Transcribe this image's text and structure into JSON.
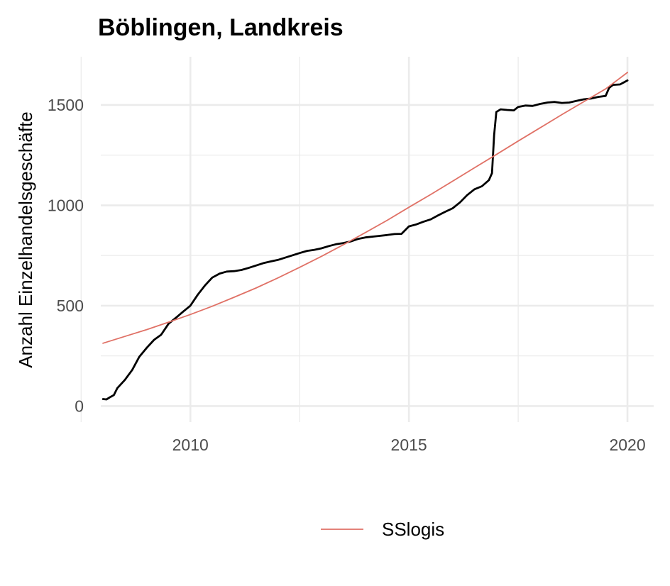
{
  "chart_data": {
    "type": "line",
    "title": "Böblingen, Landkreis",
    "xlabel": "",
    "ylabel": "Anzahl Einzelhandelsgeschäfte",
    "xlim": [
      2007.95,
      2020.6
    ],
    "ylim": [
      -80,
      1740
    ],
    "x_ticks": [
      2010,
      2015,
      2020
    ],
    "x_tick_labels": [
      "2010",
      "2015",
      "2020"
    ],
    "x_minor": [
      2007.5,
      2012.5,
      2017.5
    ],
    "y_ticks": [
      0,
      500,
      1000,
      1500
    ],
    "y_tick_labels": [
      "0",
      "500",
      "1000",
      "1500"
    ],
    "y_minor": [
      250,
      750,
      1250
    ],
    "grid": true,
    "legend": {
      "position": "bottom",
      "entries": [
        "SSlogis"
      ]
    },
    "series": [
      {
        "legend": false,
        "color": "#000000",
        "points": [
          [
            2008.0,
            35
          ],
          [
            2008.08,
            33
          ],
          [
            2008.17,
            45
          ],
          [
            2008.25,
            55
          ],
          [
            2008.33,
            90
          ],
          [
            2008.5,
            130
          ],
          [
            2008.67,
            180
          ],
          [
            2008.83,
            245
          ],
          [
            2009.0,
            290
          ],
          [
            2009.17,
            330
          ],
          [
            2009.33,
            355
          ],
          [
            2009.5,
            410
          ],
          [
            2009.67,
            440
          ],
          [
            2009.83,
            470
          ],
          [
            2010.0,
            500
          ],
          [
            2010.17,
            555
          ],
          [
            2010.33,
            600
          ],
          [
            2010.5,
            640
          ],
          [
            2010.67,
            660
          ],
          [
            2010.83,
            670
          ],
          [
            2011.0,
            672
          ],
          [
            2011.17,
            678
          ],
          [
            2011.33,
            688
          ],
          [
            2011.5,
            700
          ],
          [
            2011.67,
            712
          ],
          [
            2011.83,
            720
          ],
          [
            2012.0,
            728
          ],
          [
            2012.25,
            745
          ],
          [
            2012.5,
            762
          ],
          [
            2012.67,
            773
          ],
          [
            2012.83,
            778
          ],
          [
            2013.0,
            786
          ],
          [
            2013.17,
            797
          ],
          [
            2013.33,
            806
          ],
          [
            2013.5,
            812
          ],
          [
            2013.67,
            820
          ],
          [
            2013.83,
            832
          ],
          [
            2014.0,
            840
          ],
          [
            2014.25,
            846
          ],
          [
            2014.5,
            852
          ],
          [
            2014.67,
            857
          ],
          [
            2014.83,
            858
          ],
          [
            2015.0,
            895
          ],
          [
            2015.17,
            905
          ],
          [
            2015.33,
            918
          ],
          [
            2015.5,
            930
          ],
          [
            2015.67,
            950
          ],
          [
            2015.83,
            968
          ],
          [
            2016.0,
            985
          ],
          [
            2016.17,
            1015
          ],
          [
            2016.33,
            1050
          ],
          [
            2016.5,
            1080
          ],
          [
            2016.67,
            1095
          ],
          [
            2016.83,
            1125
          ],
          [
            2016.9,
            1160
          ],
          [
            2016.95,
            1350
          ],
          [
            2017.0,
            1465
          ],
          [
            2017.1,
            1478
          ],
          [
            2017.25,
            1475
          ],
          [
            2017.4,
            1473
          ],
          [
            2017.5,
            1490
          ],
          [
            2017.67,
            1497
          ],
          [
            2017.83,
            1495
          ],
          [
            2018.0,
            1505
          ],
          [
            2018.17,
            1512
          ],
          [
            2018.33,
            1515
          ],
          [
            2018.5,
            1510
          ],
          [
            2018.67,
            1512
          ],
          [
            2018.83,
            1520
          ],
          [
            2019.0,
            1528
          ],
          [
            2019.17,
            1532
          ],
          [
            2019.33,
            1540
          ],
          [
            2019.5,
            1545
          ],
          [
            2019.58,
            1585
          ],
          [
            2019.67,
            1600
          ],
          [
            2019.83,
            1602
          ],
          [
            2020.0,
            1622
          ]
        ]
      },
      {
        "name": "SSlogis",
        "legend": true,
        "color": "#e07166",
        "points": [
          [
            2008.0,
            313
          ],
          [
            2008.5,
            347
          ],
          [
            2009.0,
            381
          ],
          [
            2009.5,
            418
          ],
          [
            2010.0,
            456
          ],
          [
            2010.5,
            497
          ],
          [
            2011.0,
            542
          ],
          [
            2011.5,
            588
          ],
          [
            2012.0,
            638
          ],
          [
            2012.5,
            691
          ],
          [
            2013.0,
            746
          ],
          [
            2013.5,
            804
          ],
          [
            2014.0,
            864
          ],
          [
            2014.5,
            925
          ],
          [
            2015.0,
            990
          ],
          [
            2015.5,
            1054
          ],
          [
            2016.0,
            1120
          ],
          [
            2016.5,
            1187
          ],
          [
            2017.0,
            1253
          ],
          [
            2017.5,
            1320
          ],
          [
            2018.0,
            1386
          ],
          [
            2018.5,
            1452
          ],
          [
            2019.0,
            1516
          ],
          [
            2019.5,
            1580
          ],
          [
            2020.0,
            1662
          ]
        ]
      }
    ]
  }
}
